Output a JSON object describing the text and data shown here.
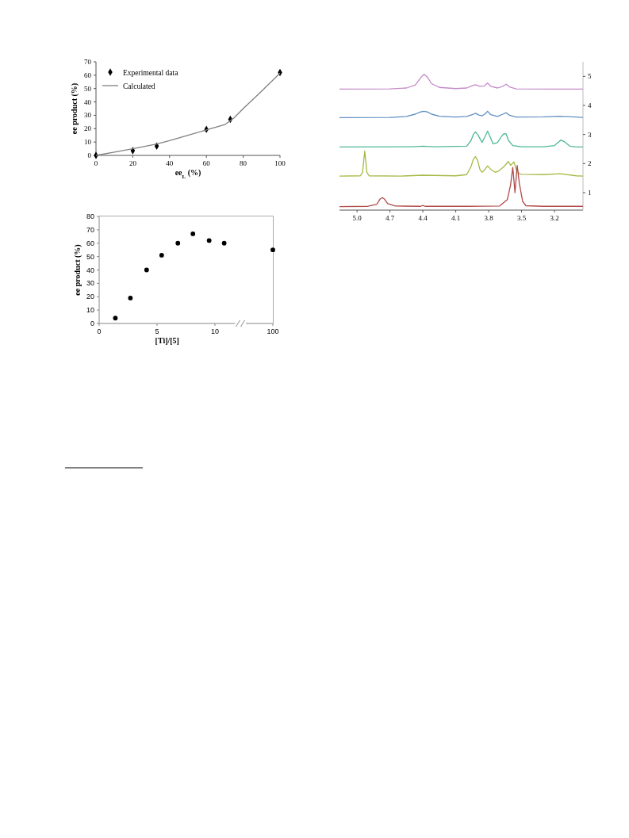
{
  "chart_data": [
    {
      "type": "scatter",
      "xlabel": "ee$_{L}$ (%)",
      "ylabel": "ee product (%)",
      "xlim": [
        0,
        100
      ],
      "xticks": [
        0,
        20,
        40,
        60,
        80,
        100
      ],
      "ylim": [
        0,
        70
      ],
      "yticks": [
        0,
        10,
        20,
        30,
        40,
        50,
        60,
        70
      ],
      "legend": "top left",
      "series": [
        {
          "name": "Experimental data",
          "type": "scatter",
          "marker": "diamond",
          "color": "#000000",
          "x": [
            0,
            20,
            33,
            60,
            73,
            100
          ],
          "values": [
            0,
            3.5,
            7,
            19.5,
            27,
            62
          ]
        },
        {
          "name": "Calculated",
          "type": "line",
          "marker": "none",
          "line_style": "solid",
          "color": "#808080",
          "x": [
            0,
            10,
            20,
            33,
            40,
            50,
            60,
            70,
            75,
            80,
            90,
            100
          ],
          "values": [
            0,
            2.5,
            5,
            8.5,
            11,
            15,
            19,
            23,
            28,
            35,
            48,
            61.5
          ]
        }
      ]
    },
    {
      "type": "scatter",
      "xlabel": "[Ti]/[5]",
      "ylabel": "ee product (%)",
      "xlim": [
        0,
        11.75
      ],
      "xticks": [
        0,
        5,
        10
      ],
      "ylim": [
        0,
        80
      ],
      "yticks": [
        0,
        10,
        20,
        30,
        40,
        50,
        60,
        70,
        80
      ],
      "marker": "circle",
      "series": [
        {
          "color": "#000000",
          "x": [
            1.4,
            2.7,
            4.1,
            5.4,
            6.8,
            8.1,
            9.5,
            10.8
          ],
          "values": [
            4,
            19,
            40,
            51,
            60,
            67,
            62,
            60
          ]
        }
      ]
    },
    {
      "type": "scatter",
      "categories": [
        "100"
      ],
      "ylim": [
        0,
        80
      ],
      "tick_labels": "x",
      "marker": "circle",
      "series": [
        {
          "color": "#000000",
          "x": [
            "100"
          ],
          "values": [
            55
          ]
        }
      ]
    },
    {
      "type": "line",
      "xlim": [
        5.16,
        2.94
      ],
      "xticks": [
        {
          "value": 5.0,
          "label": "5.0"
        },
        4.7,
        4.4,
        4.1,
        3.8,
        3.5,
        3.2
      ],
      "y2lim": [
        0.4,
        5.5
      ],
      "y2ticks": [
        1,
        2,
        3,
        4,
        5
      ],
      "marker": "none",
      "line_style": "solid",
      "series": [
        {
          "axis": "y2",
          "color": "#c48ac8",
          "x": [
            5.16,
            4.7,
            4.55,
            4.47,
            4.42,
            4.39,
            4.36,
            4.32,
            4.25,
            4.1,
            4.0,
            3.95,
            3.92,
            3.88,
            3.84,
            3.81,
            3.78,
            3.72,
            3.67,
            3.64,
            3.61,
            3.55,
            3.2,
            2.94
          ],
          "values": [
            4.56,
            4.57,
            4.6,
            4.7,
            4.95,
            5.07,
            4.98,
            4.75,
            4.62,
            4.58,
            4.6,
            4.68,
            4.71,
            4.66,
            4.67,
            4.77,
            4.66,
            4.6,
            4.66,
            4.73,
            4.64,
            4.57,
            4.56,
            4.56
          ]
        },
        {
          "axis": "y2",
          "color": "#5f8fc0",
          "x": [
            5.16,
            4.7,
            4.55,
            4.47,
            4.42,
            4.39,
            4.36,
            4.32,
            4.25,
            4.1,
            4.0,
            3.95,
            3.92,
            3.89,
            3.86,
            3.83,
            3.81,
            3.78,
            3.72,
            3.67,
            3.64,
            3.61,
            3.55,
            3.3,
            3.15,
            3.0,
            2.94
          ],
          "values": [
            3.58,
            3.59,
            3.62,
            3.7,
            3.78,
            3.8,
            3.78,
            3.7,
            3.63,
            3.6,
            3.62,
            3.68,
            3.73,
            3.67,
            3.64,
            3.72,
            3.8,
            3.68,
            3.62,
            3.7,
            3.75,
            3.66,
            3.6,
            3.61,
            3.63,
            3.6,
            3.59
          ]
        },
        {
          "axis": "y2",
          "color": "#50b898",
          "x": [
            5.16,
            4.5,
            4.4,
            4.3,
            4.0,
            3.96,
            3.94,
            3.92,
            3.9,
            3.86,
            3.83,
            3.81,
            3.79,
            3.76,
            3.72,
            3.68,
            3.66,
            3.64,
            3.62,
            3.58,
            3.5,
            3.3,
            3.2,
            3.17,
            3.14,
            3.11,
            3.06,
            3.0,
            2.94
          ],
          "values": [
            2.57,
            2.58,
            2.6,
            2.58,
            2.6,
            2.8,
            3.0,
            3.09,
            3.0,
            2.73,
            2.95,
            3.12,
            2.95,
            2.68,
            2.72,
            2.95,
            3.03,
            3.02,
            2.8,
            2.62,
            2.58,
            2.58,
            2.62,
            2.72,
            2.81,
            2.75,
            2.6,
            2.57,
            2.57
          ]
        },
        {
          "axis": "y2",
          "color": "#a8b845",
          "x": [
            5.16,
            4.97,
            4.95,
            4.93,
            4.91,
            4.89,
            4.6,
            4.4,
            4.1,
            4.0,
            3.96,
            3.94,
            3.92,
            3.9,
            3.88,
            3.86,
            3.83,
            3.81,
            3.78,
            3.74,
            3.71,
            3.66,
            3.62,
            3.6,
            3.57,
            3.55,
            3.52,
            3.5,
            3.3,
            3.15,
            3.0,
            2.94
          ],
          "values": [
            1.57,
            1.58,
            1.7,
            2.43,
            1.7,
            1.58,
            1.57,
            1.6,
            1.58,
            1.62,
            1.9,
            2.15,
            2.24,
            2.1,
            1.8,
            1.7,
            1.82,
            1.92,
            1.8,
            1.7,
            1.74,
            1.9,
            2.07,
            1.94,
            2.06,
            1.8,
            1.65,
            1.63,
            1.62,
            1.65,
            1.58,
            1.57
          ]
        },
        {
          "axis": "y2",
          "color": "#b04a4a",
          "x": [
            5.16,
            4.9,
            4.82,
            4.79,
            4.77,
            4.75,
            4.72,
            4.65,
            4.42,
            4.4,
            4.38,
            4.0,
            3.7,
            3.63,
            3.61,
            3.6,
            3.58,
            3.56,
            3.54,
            3.52,
            3.5,
            3.49,
            3.46,
            3.3,
            2.94
          ],
          "values": [
            0.52,
            0.53,
            0.6,
            0.78,
            0.83,
            0.78,
            0.62,
            0.54,
            0.53,
            0.56,
            0.53,
            0.53,
            0.54,
            0.76,
            1.1,
            1.27,
            1.87,
            1.0,
            1.94,
            1.31,
            0.9,
            0.7,
            0.55,
            0.53,
            0.53
          ]
        }
      ]
    }
  ]
}
